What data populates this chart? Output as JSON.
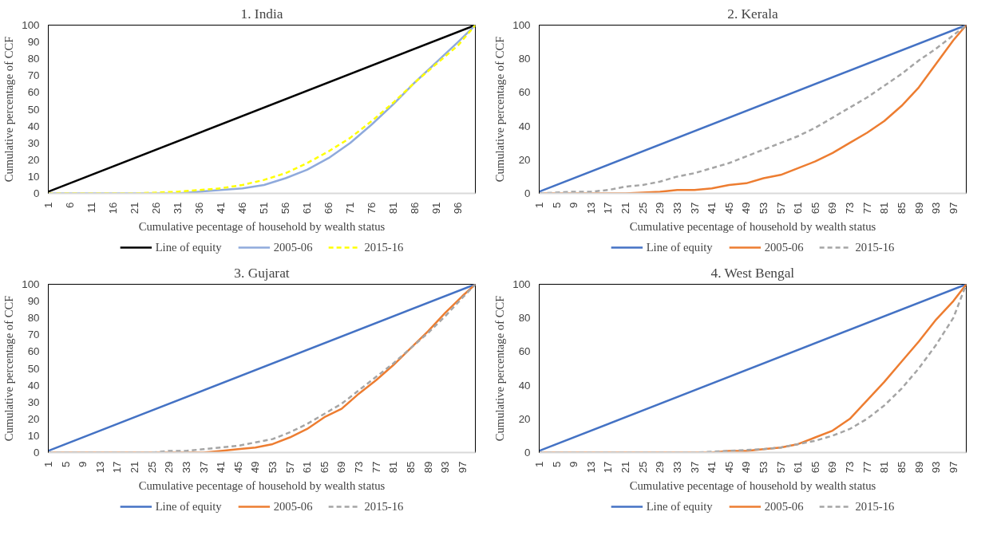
{
  "chart_data": [
    {
      "type": "line",
      "title": "1. India",
      "xlabel": "Cumulative pecentage of household by wealth status",
      "ylabel": "Cumulative percentage of CCF",
      "xlim": [
        1,
        100
      ],
      "xticks": [
        1,
        6,
        11,
        16,
        21,
        26,
        31,
        36,
        41,
        46,
        51,
        56,
        61,
        66,
        71,
        76,
        81,
        86,
        91,
        96
      ],
      "ylim": [
        0,
        100
      ],
      "yticks": [
        0,
        10,
        20,
        30,
        40,
        50,
        60,
        70,
        80,
        90,
        100
      ],
      "grid": false,
      "legend": "bottom",
      "marker": "none",
      "series": [
        {
          "name": "Line of equity",
          "color": "#000000",
          "line_style": "solid",
          "x": [
            1,
            100
          ],
          "values": [
            1,
            100
          ]
        },
        {
          "name": "2005-06",
          "color": "#8faadc",
          "line_style": "solid",
          "x": [
            1,
            21,
            31,
            36,
            41,
            46,
            51,
            56,
            61,
            66,
            71,
            76,
            81,
            86,
            91,
            96,
            100
          ],
          "values": [
            0,
            0,
            0,
            1,
            2,
            3,
            5,
            9,
            14,
            21,
            30,
            41,
            53,
            66,
            78,
            90,
            100
          ]
        },
        {
          "name": "2015-16",
          "color": "#ffff00",
          "line_style": "dashed",
          "x": [
            1,
            21,
            31,
            36,
            41,
            46,
            51,
            56,
            61,
            66,
            71,
            76,
            81,
            86,
            91,
            96,
            100
          ],
          "values": [
            0,
            0,
            1,
            2,
            3,
            5,
            8,
            12,
            18,
            25,
            33,
            43,
            54,
            66,
            77,
            88,
            100
          ]
        }
      ]
    },
    {
      "type": "line",
      "title": "2. Kerala",
      "xlabel": "Cumulative pecentage of household by wealth status",
      "ylabel": "Cumulative percentage of CCF",
      "xlim": [
        1,
        100
      ],
      "xticks": [
        1,
        5,
        9,
        13,
        17,
        21,
        25,
        29,
        33,
        37,
        41,
        45,
        49,
        53,
        57,
        61,
        65,
        69,
        73,
        77,
        81,
        85,
        89,
        93,
        97
      ],
      "ylim": [
        0,
        100
      ],
      "yticks": [
        0,
        20,
        40,
        60,
        80,
        100
      ],
      "grid": false,
      "legend": "bottom",
      "marker": "none",
      "series": [
        {
          "name": "Line of equity",
          "color": "#4472c4",
          "line_style": "solid",
          "x": [
            1,
            100
          ],
          "values": [
            1,
            100
          ]
        },
        {
          "name": "2005-06",
          "color": "#ed7d31",
          "line_style": "solid",
          "x": [
            1,
            13,
            21,
            29,
            33,
            37,
            41,
            45,
            49,
            53,
            57,
            61,
            65,
            69,
            73,
            77,
            81,
            85,
            89,
            93,
            97,
            100
          ],
          "values": [
            0,
            0,
            0,
            1,
            2,
            2,
            3,
            5,
            6,
            9,
            11,
            15,
            19,
            24,
            30,
            36,
            43,
            52,
            63,
            77,
            91,
            100
          ]
        },
        {
          "name": "2015-16",
          "color": "#a5a5a5",
          "line_style": "dashed",
          "x": [
            1,
            9,
            13,
            17,
            21,
            25,
            29,
            33,
            37,
            41,
            45,
            49,
            53,
            57,
            61,
            65,
            69,
            73,
            77,
            81,
            85,
            89,
            93,
            97,
            100
          ],
          "values": [
            0,
            1,
            1,
            2,
            4,
            5,
            7,
            10,
            12,
            15,
            18,
            22,
            26,
            30,
            34,
            39,
            45,
            51,
            57,
            64,
            71,
            79,
            86,
            94,
            100
          ]
        }
      ]
    },
    {
      "type": "line",
      "title": "3. Gujarat",
      "xlabel": "Cumulative pecentage of household by wealth status",
      "ylabel": "Cumulative percentage of CCF",
      "xlim": [
        1,
        100
      ],
      "xticks": [
        1,
        5,
        9,
        13,
        17,
        21,
        25,
        29,
        33,
        37,
        41,
        45,
        49,
        53,
        57,
        61,
        65,
        69,
        73,
        77,
        81,
        85,
        89,
        93,
        97
      ],
      "ylim": [
        0,
        100
      ],
      "yticks": [
        0,
        10,
        20,
        30,
        40,
        50,
        60,
        70,
        80,
        90,
        100
      ],
      "grid": false,
      "legend": "bottom",
      "marker": "none",
      "series": [
        {
          "name": "Line of equity",
          "color": "#4472c4",
          "line_style": "solid",
          "x": [
            1,
            100
          ],
          "values": [
            1,
            100
          ]
        },
        {
          "name": "2005-06",
          "color": "#ed7d31",
          "line_style": "solid",
          "x": [
            1,
            29,
            33,
            37,
            41,
            45,
            49,
            53,
            57,
            61,
            65,
            69,
            73,
            77,
            81,
            85,
            89,
            93,
            97,
            100
          ],
          "values": [
            0,
            0,
            0,
            0,
            1,
            2,
            3,
            5,
            9,
            14,
            21,
            26,
            35,
            43,
            52,
            62,
            72,
            83,
            93,
            100
          ]
        },
        {
          "name": "2015-16",
          "color": "#a5a5a5",
          "line_style": "dashed",
          "x": [
            1,
            25,
            29,
            33,
            37,
            41,
            45,
            49,
            53,
            57,
            61,
            65,
            69,
            73,
            77,
            81,
            85,
            89,
            93,
            97,
            100
          ],
          "values": [
            0,
            0,
            1,
            1,
            2,
            3,
            4,
            6,
            8,
            12,
            17,
            23,
            29,
            37,
            45,
            53,
            62,
            71,
            81,
            92,
            100
          ]
        }
      ]
    },
    {
      "type": "line",
      "title": "4. West Bengal",
      "xlabel": "Cumulative pecentage of household by wealth status",
      "ylabel": "Cumulative percentage of CCF",
      "xlim": [
        1,
        100
      ],
      "xticks": [
        1,
        5,
        9,
        13,
        17,
        21,
        25,
        29,
        33,
        37,
        41,
        45,
        49,
        53,
        57,
        61,
        65,
        69,
        73,
        77,
        81,
        85,
        89,
        93,
        97
      ],
      "ylim": [
        0,
        100
      ],
      "yticks": [
        0,
        20,
        40,
        60,
        80,
        100
      ],
      "grid": false,
      "legend": "bottom",
      "marker": "none",
      "series": [
        {
          "name": "Line of equity",
          "color": "#4472c4",
          "line_style": "solid",
          "x": [
            1,
            100
          ],
          "values": [
            1,
            100
          ]
        },
        {
          "name": "2005-06",
          "color": "#ed7d31",
          "line_style": "solid",
          "x": [
            1,
            41,
            45,
            49,
            53,
            57,
            61,
            65,
            69,
            73,
            77,
            81,
            85,
            89,
            93,
            97,
            100
          ],
          "values": [
            0,
            0,
            1,
            1,
            2,
            3,
            5,
            9,
            13,
            20,
            31,
            42,
            54,
            66,
            79,
            90,
            100
          ]
        },
        {
          "name": "2015-16",
          "color": "#a5a5a5",
          "line_style": "dashed",
          "x": [
            1,
            37,
            45,
            53,
            57,
            61,
            65,
            69,
            73,
            77,
            81,
            85,
            89,
            93,
            97,
            100
          ],
          "values": [
            0,
            0,
            1,
            2,
            3,
            5,
            7,
            10,
            14,
            20,
            28,
            38,
            50,
            64,
            80,
            100
          ]
        }
      ]
    }
  ]
}
